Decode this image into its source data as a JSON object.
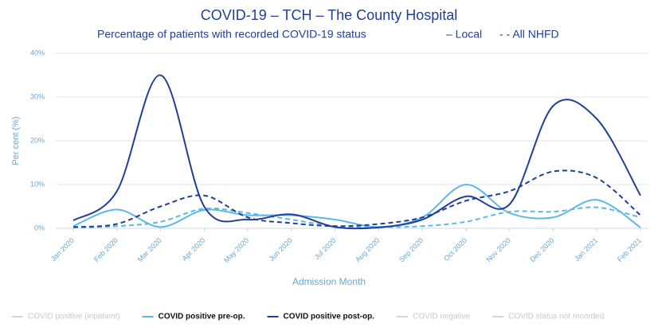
{
  "chart_data": {
    "type": "line",
    "title": "COVID-19 – TCH – The County Hospital",
    "subtitle": "Percentage of patients with recorded COVID-19 status",
    "local_label": "– Local",
    "nhfd_label": "- - All NHFD",
    "x_label": "Admission Month",
    "y_label": "Per cent (%)",
    "categories": [
      "Jan 2020",
      "Feb 2020",
      "Mar 2020",
      "Apr 2020",
      "May 2020",
      "Jun 2020",
      "Jul 2020",
      "Aug 2020",
      "Sep 2020",
      "Oct 2020",
      "Nov 2020",
      "Dec 2020",
      "Jan 2021",
      "Feb 2021"
    ],
    "ylim": [
      0,
      40
    ],
    "yticks": [
      {
        "value": 0,
        "label": "0%"
      },
      {
        "value": 10,
        "label": "10%"
      },
      {
        "value": 20,
        "label": "20%"
      },
      {
        "value": 30,
        "label": "30%"
      },
      {
        "value": 40,
        "label": "40%"
      }
    ],
    "grid": true,
    "legend": "bottom",
    "series": [
      {
        "name": "COVID positive (inpatient)",
        "color": "#d6d6d6",
        "hidden": true
      },
      {
        "name": "COVID positive pre-op.",
        "color": "#5bb8e8",
        "values": [
          0.5,
          4.3,
          0.3,
          4.2,
          3,
          3,
          2,
          0.3,
          2.5,
          10,
          3.5,
          2.5,
          6.5,
          0.2
        ],
        "nhfd_values": [
          0.2,
          0.5,
          1.5,
          4.5,
          3.5,
          2,
          0.5,
          0.3,
          0.5,
          1.5,
          3.8,
          3.8,
          4.8,
          2.5
        ]
      },
      {
        "name": "COVID positive post-op.",
        "color": "#1f3f99",
        "values": [
          1.8,
          8.5,
          35,
          5,
          2,
          3.2,
          0.3,
          0.2,
          2,
          7.3,
          5.5,
          28,
          25,
          7.5
        ],
        "nhfd_values": [
          0.3,
          1,
          5,
          7.5,
          2.5,
          1.2,
          0.5,
          1,
          2.5,
          6.3,
          8.5,
          13,
          11.5,
          3
        ]
      },
      {
        "name": "COVID negative",
        "color": "#d6d6d6",
        "hidden": true
      },
      {
        "name": "COVID status not recorded",
        "color": "#d6d6d6",
        "hidden": true
      }
    ]
  }
}
